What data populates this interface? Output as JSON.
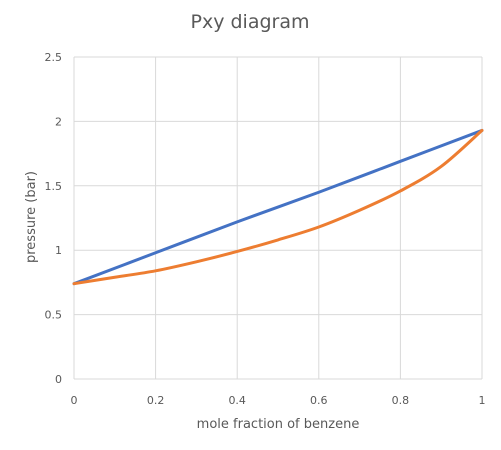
{
  "chart_data": {
    "type": "line",
    "title": "Pxy diagram",
    "xlabel": "mole fraction of benzene",
    "ylabel": "pressure (bar)",
    "xlim": [
      0,
      1
    ],
    "ylim": [
      0,
      2.5
    ],
    "x_ticks": [
      "0",
      "0.2",
      "0.4",
      "0.6",
      "0.8",
      "1"
    ],
    "y_ticks": [
      "0",
      "0.5",
      "1",
      "1.5",
      "2",
      "2.5"
    ],
    "grid": true,
    "legend": "none",
    "series": [
      {
        "color": "#4472c4",
        "x": [
          0,
          0.2,
          0.4,
          0.6,
          0.8,
          1.0
        ],
        "y": [
          0.74,
          0.98,
          1.22,
          1.45,
          1.69,
          1.93
        ]
      },
      {
        "color": "#ed7d31",
        "x": [
          0,
          0.1,
          0.2,
          0.3,
          0.4,
          0.5,
          0.6,
          0.7,
          0.8,
          0.9,
          1.0
        ],
        "y": [
          0.74,
          0.79,
          0.84,
          0.91,
          0.99,
          1.08,
          1.18,
          1.31,
          1.46,
          1.65,
          1.93
        ]
      }
    ]
  }
}
